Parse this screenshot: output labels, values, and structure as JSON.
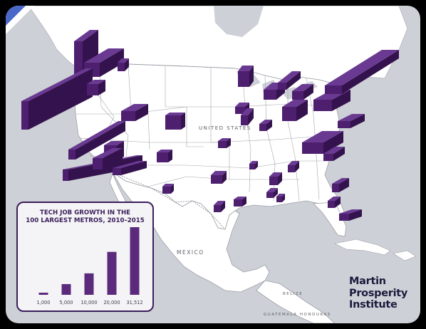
{
  "labels": {
    "united_states": "UNITED STATES",
    "mexico": "MEXICO",
    "belize": "BELIZE",
    "guatemala": "GUATEMALA",
    "honduras": "HONDURAS"
  },
  "legend": {
    "title_line1": "TECH JOB GROWTH IN THE",
    "title_line2": "100 LARGEST METROS, 2010–2015"
  },
  "chart_data": {
    "type": "bar",
    "title": "TECH JOB GROWTH IN THE 100 LARGEST METROS, 2010–2015",
    "categories": [
      "1,000",
      "5,000",
      "10,000",
      "20,000",
      "31,512"
    ],
    "values": [
      1000,
      5000,
      10000,
      20000,
      31512
    ],
    "xlabel": "",
    "ylabel": "",
    "ylim": [
      0,
      31512
    ],
    "bar_color": "#5b2a7c",
    "grid": false
  },
  "brand": {
    "line1": "Martin",
    "line2": "Prosperity",
    "line3": "Institute"
  },
  "colors": {
    "land": "#ffffff",
    "water": "#cdd0d6",
    "border": "#9da0a8",
    "spike_top": "#6a3a92",
    "spike_front": "#4d1f6e",
    "spike_side": "#34124d",
    "brand_text": "#1c1b3d",
    "legend_border": "#3a1e5a"
  }
}
